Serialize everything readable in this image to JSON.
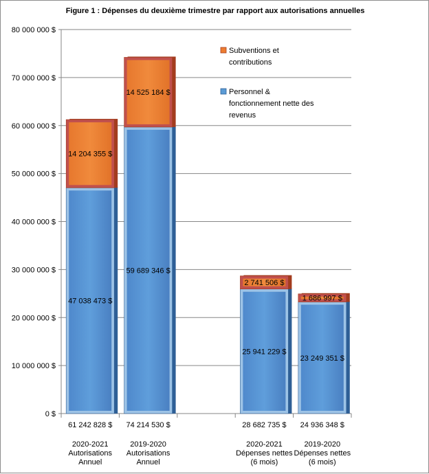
{
  "chart_data": {
    "type": "bar",
    "stacked": true,
    "title": "Figure 1 : Dépenses du deuxième trimestre par rapport aux autorisations annuelles",
    "ylim": [
      0,
      80000000
    ],
    "y_ticks": [
      0,
      10000000,
      20000000,
      30000000,
      40000000,
      50000000,
      60000000,
      70000000,
      80000000
    ],
    "y_tick_labels": [
      "0 $",
      "10 000 000 $",
      "20 000 000 $",
      "30 000 000 $",
      "40 000 000 $",
      "50 000 000 $",
      "60 000 000 $",
      "70 000 000 $",
      "80 000 000 $"
    ],
    "grid": true,
    "legend_position": "top-right",
    "categories": [
      {
        "lines": [
          "2020-2021",
          "Autorisations",
          "Annuel"
        ],
        "total_label": "61 242 828 $",
        "slot": 0
      },
      {
        "lines": [
          "2019-2020",
          "Autorisations",
          "Annuel"
        ],
        "total_label": "74 214 530 $",
        "slot": 1
      },
      {
        "lines": [
          "2020-2021",
          "Dépenses nettes",
          "(6 mois)"
        ],
        "total_label": "28 682 735 $",
        "slot": 3
      },
      {
        "lines": [
          "2019-2020",
          "Dépenses nettes",
          "(6 mois)"
        ],
        "total_label": "24 936 348 $",
        "slot": 4
      }
    ],
    "series": [
      {
        "name": "Personnel & fonctionnement nette des revenus",
        "legend_lines": [
          "Personnel &",
          "fonctionnement nette des",
          "revenus"
        ],
        "color": "#5b9bd5",
        "values": [
          47038473,
          59689346,
          25941229,
          23249351
        ],
        "labels": [
          "47 038 473 $",
          "59 689 346 $",
          "25 941 229 $",
          "23 249 351 $"
        ]
      },
      {
        "name": "Subventions et contributions",
        "legend_lines": [
          "Subventions et",
          "contributions"
        ],
        "color": "#ed7d31",
        "values": [
          14204355,
          14525184,
          2741506,
          1686997
        ],
        "labels": [
          "14 204 355 $",
          "14 525 184 $",
          "2 741 506 $",
          "1 686 997 $"
        ]
      }
    ]
  }
}
